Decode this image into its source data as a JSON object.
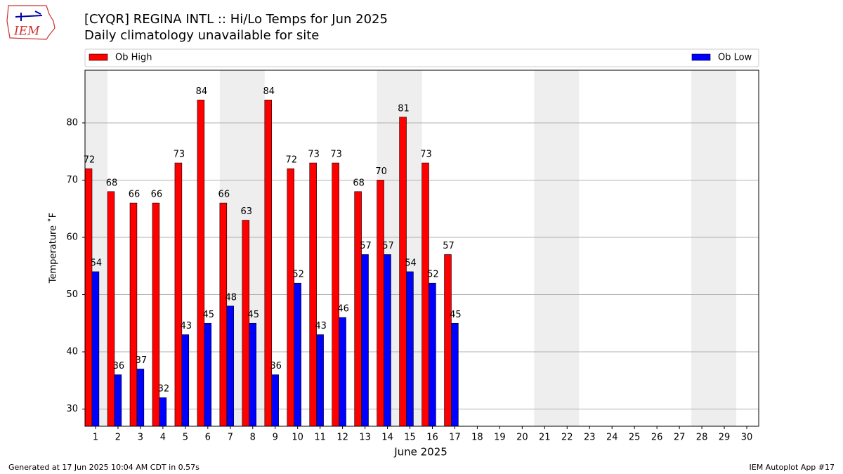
{
  "logo": "IEM",
  "footer": {
    "left": "Generated at 17 Jun 2025 10:04 AM CDT in 0.57s",
    "right": "IEM Autoplot App #17"
  },
  "chart_data": {
    "type": "bar",
    "title": "[CYQR] REGINA INTL :: Hi/Lo Temps for Jun 2025",
    "subtitle": "Daily climatology unavailable for site",
    "xlabel": "June 2025",
    "ylabel": "Temperature ˚F",
    "categories": [
      "1",
      "2",
      "3",
      "4",
      "5",
      "6",
      "7",
      "8",
      "9",
      "10",
      "11",
      "12",
      "13",
      "14",
      "15",
      "16",
      "17",
      "18",
      "19",
      "20",
      "21",
      "22",
      "23",
      "24",
      "25",
      "26",
      "27",
      "28",
      "29",
      "30"
    ],
    "series": [
      {
        "name": "Ob High",
        "color": "#ff0000",
        "values": [
          72,
          68,
          66,
          66,
          73,
          84,
          66,
          63,
          84,
          72,
          73,
          73,
          68,
          70,
          81,
          73,
          57,
          null,
          null,
          null,
          null,
          null,
          null,
          null,
          null,
          null,
          null,
          null,
          null,
          null
        ]
      },
      {
        "name": "Ob Low",
        "color": "#0000ff",
        "values": [
          54,
          36,
          37,
          32,
          43,
          45,
          48,
          45,
          36,
          52,
          43,
          46,
          57,
          57,
          54,
          52,
          45,
          null,
          null,
          null,
          null,
          null,
          null,
          null,
          null,
          null,
          null,
          null,
          null,
          null
        ]
      }
    ],
    "ylim": [
      27,
      89.2
    ],
    "yticks": [
      30,
      40,
      50,
      60,
      70,
      80
    ],
    "grid": true
  }
}
